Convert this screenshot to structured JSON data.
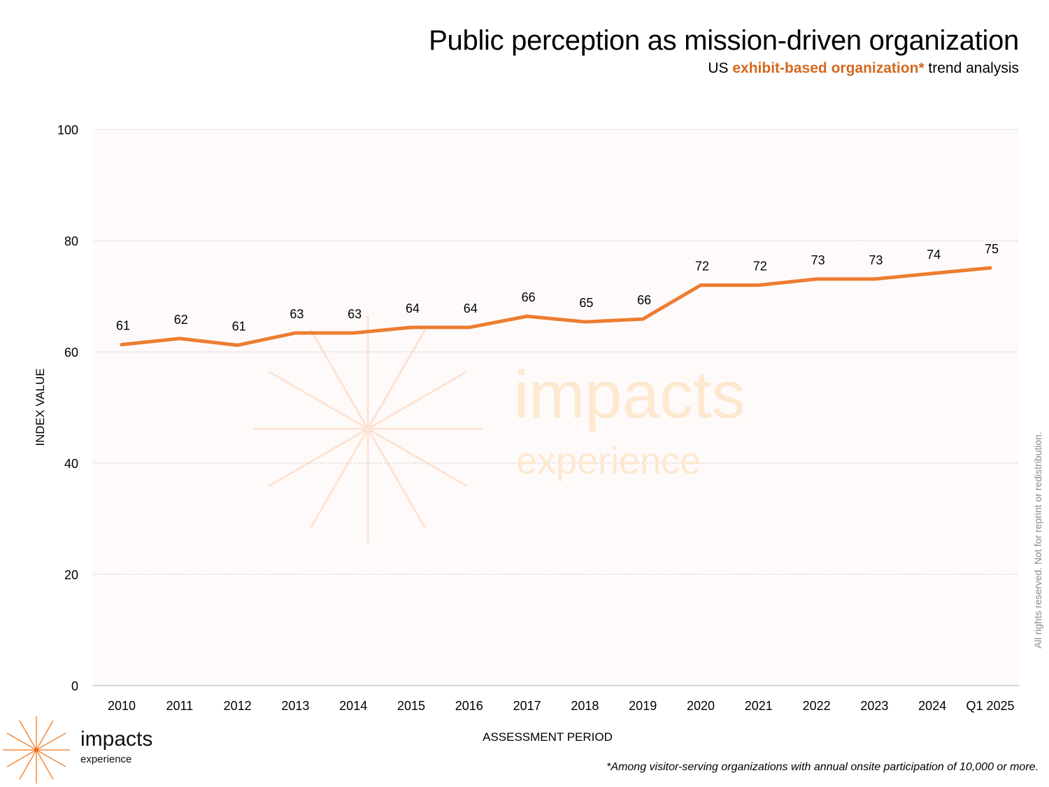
{
  "header": {
    "title": "Public perception as mission-driven organization",
    "subtitle_prefix": "US",
    "subtitle_highlight": "exhibit-based organization*",
    "subtitle_suffix": "trend analysis"
  },
  "footer": {
    "footnote": "*Among visitor-serving organizations with annual onsite participation of 10,000 or more.",
    "rights": "All rights reserved. Not for reprint or redistribution.",
    "logo_word": "impacts",
    "logo_sub": "experience"
  },
  "watermark": {
    "word": "impacts",
    "sub": "experience"
  },
  "colors": {
    "line": "#ed7d31",
    "highlight": "#d2691e",
    "plot_background": "#fffafa",
    "watermark": "#fde8d0"
  },
  "chart_data": {
    "type": "line",
    "title": "Public perception as mission-driven organization",
    "subtitle": "US exhibit-based organization* trend analysis",
    "xlabel": "ASSESSMENT PERIOD",
    "ylabel": "INDEX VALUE",
    "ylim": [
      0,
      100
    ],
    "yticks": [
      0,
      20,
      40,
      60,
      80,
      100
    ],
    "grid": true,
    "legend": "none",
    "categories": [
      "2010",
      "2011",
      "2012",
      "2013",
      "2014",
      "2015",
      "2016",
      "2017",
      "2018",
      "2019",
      "2020",
      "2021",
      "2022",
      "2023",
      "2024",
      "Q1 2025"
    ],
    "series": [
      {
        "name": "Index value",
        "values": [
          61.3,
          62.4,
          61.2,
          63.4,
          63.4,
          64.4,
          64.4,
          66.4,
          65.4,
          65.9,
          72.0,
          72.0,
          73.1,
          73.1,
          74.1,
          75.1
        ],
        "labels": [
          "61",
          "62",
          "61",
          "63",
          "63",
          "64",
          "64",
          "66",
          "65",
          "66",
          "72",
          "72",
          "73",
          "73",
          "74",
          "75"
        ]
      }
    ]
  }
}
